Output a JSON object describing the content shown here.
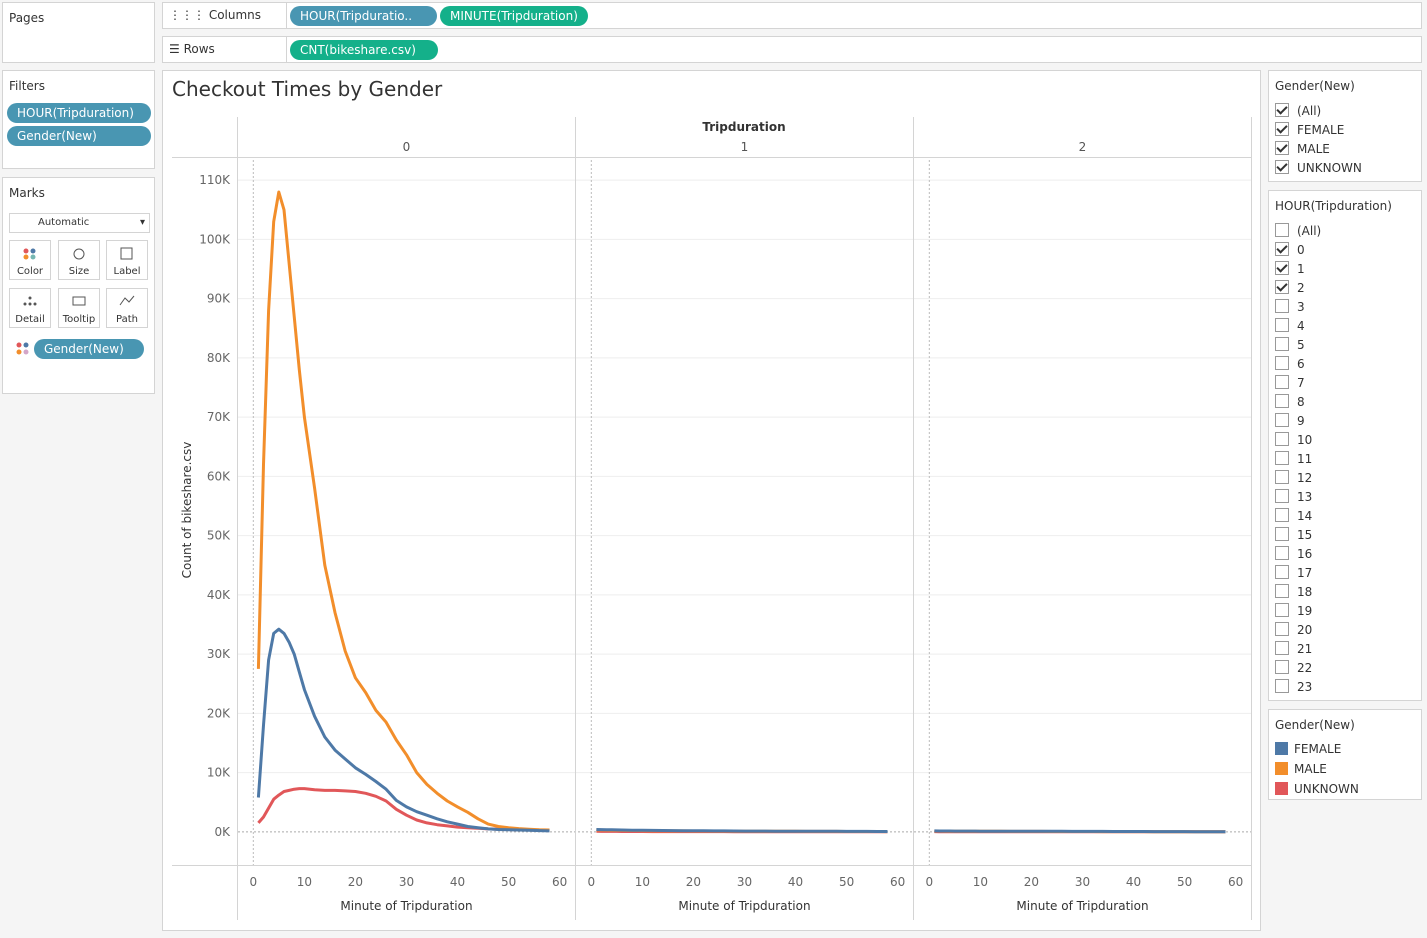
{
  "shelves": {
    "pages": "Pages",
    "columns": "Columns",
    "column_pills": [
      "HOUR(Tripduratio..",
      "MINUTE(Tripduration)"
    ],
    "rows": "Rows",
    "row_pills": [
      "CNT(bikeshare.csv)"
    ]
  },
  "filters": {
    "title": "Filters",
    "pills": [
      "HOUR(Tripduration)",
      "Gender(New)"
    ]
  },
  "marks": {
    "title": "Marks",
    "mark_type": "Automatic",
    "buttons": [
      "Color",
      "Size",
      "Label",
      "Detail",
      "Tooltip",
      "Path"
    ],
    "pill": "Gender(New)"
  },
  "gender_filter": {
    "title": "Gender(New)",
    "items": [
      {
        "label": "(All)",
        "checked": true
      },
      {
        "label": "FEMALE",
        "checked": true
      },
      {
        "label": "MALE",
        "checked": true
      },
      {
        "label": "UNKNOWN",
        "checked": true
      }
    ]
  },
  "hour_filter": {
    "title": "HOUR(Tripduration)",
    "items": [
      {
        "label": "(All)",
        "checked": false
      },
      {
        "label": "0",
        "checked": true
      },
      {
        "label": "1",
        "checked": true
      },
      {
        "label": "2",
        "checked": true
      },
      {
        "label": "3",
        "checked": false
      },
      {
        "label": "4",
        "checked": false
      },
      {
        "label": "5",
        "checked": false
      },
      {
        "label": "6",
        "checked": false
      },
      {
        "label": "7",
        "checked": false
      },
      {
        "label": "8",
        "checked": false
      },
      {
        "label": "9",
        "checked": false
      },
      {
        "label": "10",
        "checked": false
      },
      {
        "label": "11",
        "checked": false
      },
      {
        "label": "12",
        "checked": false
      },
      {
        "label": "13",
        "checked": false
      },
      {
        "label": "14",
        "checked": false
      },
      {
        "label": "15",
        "checked": false
      },
      {
        "label": "16",
        "checked": false
      },
      {
        "label": "17",
        "checked": false
      },
      {
        "label": "18",
        "checked": false
      },
      {
        "label": "19",
        "checked": false
      },
      {
        "label": "20",
        "checked": false
      },
      {
        "label": "21",
        "checked": false
      },
      {
        "label": "22",
        "checked": false
      },
      {
        "label": "23",
        "checked": false
      }
    ]
  },
  "legend": {
    "title": "Gender(New)"
  },
  "chart_data": {
    "type": "line",
    "title": "Checkout Times  by Gender",
    "column_header": "Tripduration",
    "panels": [
      "0",
      "1",
      "2"
    ],
    "x_label": "Minute of Tripduration",
    "y_label": "Count of bikeshare.csv",
    "x": [
      1,
      2,
      3,
      4,
      5,
      6,
      7,
      8,
      9,
      10,
      12,
      14,
      16,
      18,
      20,
      22,
      24,
      26,
      28,
      30,
      32,
      34,
      36,
      38,
      40,
      42,
      44,
      46,
      48,
      50,
      52,
      54,
      56,
      58
    ],
    "series": [
      {
        "name": "FEMALE",
        "color": "#4e79a7",
        "values": [
          [
            5800,
            18000,
            29000,
            33500,
            34200,
            33500,
            32000,
            30000,
            27000,
            24000,
            19500,
            16000,
            13800,
            12300,
            10800,
            9700,
            8500,
            7200,
            5300,
            4200,
            3400,
            2800,
            2200,
            1700,
            1300,
            900,
            700,
            500,
            400,
            350,
            300,
            250,
            200,
            150
          ],
          [
            400,
            380,
            360,
            340,
            320,
            300,
            290,
            280,
            270,
            260,
            240,
            220,
            200,
            190,
            180,
            170,
            160,
            150,
            140,
            130,
            120,
            115,
            110,
            105,
            100,
            95,
            90,
            85,
            80,
            75,
            70,
            65,
            60,
            55
          ],
          [
            150,
            145,
            140,
            135,
            130,
            125,
            120,
            118,
            115,
            112,
            108,
            104,
            100,
            96,
            92,
            88,
            84,
            80,
            76,
            72,
            68,
            64,
            60,
            56,
            52,
            48,
            44,
            40,
            36,
            32,
            28,
            24,
            20,
            16
          ]
        ]
      },
      {
        "name": "MALE",
        "color": "#f28e2b",
        "values": [
          [
            27500,
            62000,
            88000,
            103000,
            108000,
            105000,
            96000,
            87000,
            78000,
            70000,
            58000,
            45000,
            37000,
            30500,
            26000,
            23500,
            20500,
            18500,
            15500,
            13000,
            10000,
            8000,
            6500,
            5200,
            4200,
            3300,
            2200,
            1300,
            900,
            700,
            550,
            450,
            350,
            300
          ],
          [
            320,
            300,
            290,
            270,
            260,
            240,
            230,
            220,
            215,
            210,
            190,
            175,
            160,
            150,
            145,
            135,
            130,
            120,
            110,
            105,
            95,
            90,
            88,
            84,
            80,
            76,
            72,
            68,
            64,
            60,
            56,
            52,
            48,
            44
          ],
          [
            120,
            116,
            112,
            108,
            104,
            100,
            96,
            94,
            92,
            90,
            86,
            82,
            78,
            74,
            70,
            66,
            62,
            58,
            54,
            50,
            47,
            44,
            41,
            38,
            35,
            32,
            29,
            26,
            23,
            20,
            17,
            14,
            11,
            8
          ]
        ]
      },
      {
        "name": "UNKNOWN",
        "color": "#e15759",
        "values": [
          [
            1500,
            2500,
            4000,
            5500,
            6200,
            6800,
            7000,
            7200,
            7300,
            7300,
            7100,
            7000,
            7000,
            6900,
            6800,
            6500,
            6000,
            5200,
            3800,
            2800,
            2000,
            1500,
            1200,
            1000,
            800,
            700,
            600,
            500,
            450,
            400,
            350,
            300,
            250,
            200
          ],
          [
            80,
            75,
            70,
            68,
            65,
            60,
            58,
            55,
            52,
            50,
            46,
            42,
            40,
            38,
            36,
            34,
            32,
            30,
            28,
            26,
            24,
            23,
            22,
            21,
            20,
            19,
            18,
            17,
            16,
            15,
            14,
            13,
            12,
            11
          ],
          [
            30,
            29,
            28,
            27,
            26,
            25,
            24,
            23,
            22,
            21,
            20,
            19,
            18,
            17,
            16,
            15,
            14,
            13,
            12,
            11,
            10,
            10,
            9,
            9,
            8,
            8,
            7,
            7,
            6,
            6,
            5,
            5,
            4,
            4
          ]
        ]
      }
    ],
    "xlim": [
      -3,
      63
    ],
    "xticks": [
      0,
      10,
      20,
      30,
      40,
      50,
      60
    ],
    "ylim": [
      -5600,
      113400
    ],
    "yticks": [
      {
        "value": 0,
        "label": "0K"
      },
      {
        "value": 10000,
        "label": "10K"
      },
      {
        "value": 20000,
        "label": "20K"
      },
      {
        "value": 30000,
        "label": "30K"
      },
      {
        "value": 40000,
        "label": "40K"
      },
      {
        "value": 50000,
        "label": "50K"
      },
      {
        "value": 60000,
        "label": "60K"
      },
      {
        "value": 70000,
        "label": "70K"
      },
      {
        "value": 80000,
        "label": "80K"
      },
      {
        "value": 90000,
        "label": "90K"
      },
      {
        "value": 100000,
        "label": "100K"
      },
      {
        "value": 110000,
        "label": "110K"
      }
    ],
    "grid": true
  }
}
